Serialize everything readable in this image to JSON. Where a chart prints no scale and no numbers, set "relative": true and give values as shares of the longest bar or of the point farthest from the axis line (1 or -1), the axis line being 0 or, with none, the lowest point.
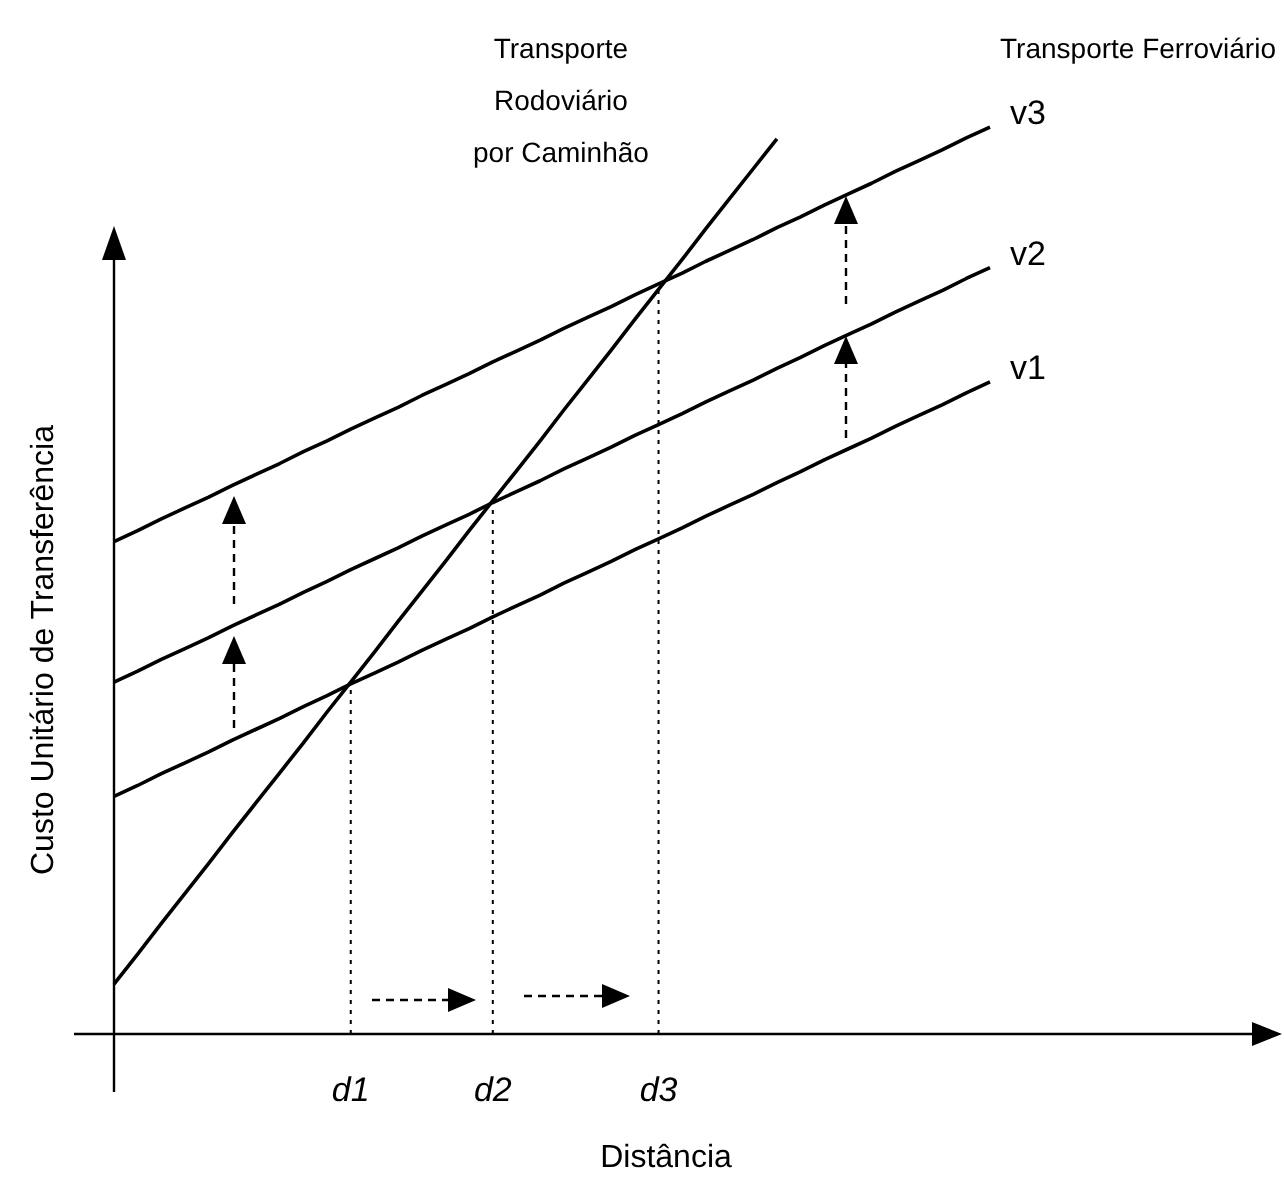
{
  "chart_data": {
    "type": "line",
    "relative": true,
    "xlabel": "Distância",
    "ylabel": "Custo Unitário de Transferência",
    "legend": false,
    "marker": "none",
    "line_style": "solid",
    "annotations": [
      "Transporte Ferroviário"
    ],
    "categories": [
      null,
      null,
      null,
      null,
      null,
      null,
      null,
      null,
      null,
      null,
      "d1",
      null,
      null,
      null,
      null,
      null,
      "d2",
      null,
      null,
      null,
      null,
      null,
      null,
      "d3",
      null,
      null,
      null,
      null,
      null,
      null,
      null,
      null,
      null,
      null,
      null,
      null,
      null,
      null
    ],
    "ref_lines": [
      {
        "axis": "x",
        "value": "d1",
        "line_style": "dotted",
        "color": "#000000"
      },
      {
        "axis": "x",
        "value": "d2",
        "line_style": "dotted",
        "color": "#000000"
      },
      {
        "axis": "x",
        "value": "d3",
        "line_style": "dotted",
        "color": "#000000"
      }
    ],
    "series": [
      {
        "name": "Transporte Rodoviário por Caminhão",
        "color": "#000000",
        "values": [
          0.055,
          0.088,
          0.122,
          0.155,
          0.188,
          0.222,
          0.255,
          0.288,
          0.321,
          0.355,
          0.388,
          0.421,
          0.455,
          0.488,
          0.521,
          0.555,
          0.588,
          0.621,
          0.654,
          0.688,
          0.721,
          0.754,
          0.788,
          0.821,
          0.854,
          0.888,
          0.921,
          0.954,
          0.987,
          null,
          null,
          null,
          null,
          null,
          null,
          null,
          null,
          null
        ]
      },
      {
        "name": "v1",
        "color": "#000000",
        "values": [
          0.262,
          0.274,
          0.287,
          0.299,
          0.311,
          0.324,
          0.336,
          0.348,
          0.361,
          0.373,
          0.386,
          0.398,
          0.41,
          0.423,
          0.435,
          0.447,
          0.46,
          0.472,
          0.484,
          0.497,
          0.509,
          0.521,
          0.534,
          0.546,
          0.558,
          0.571,
          0.583,
          0.595,
          0.608,
          0.62,
          0.633,
          0.645,
          0.657,
          0.67,
          0.682,
          0.694,
          0.707,
          0.719
        ]
      },
      {
        "name": "v2",
        "color": "#000000",
        "values": [
          0.388,
          0.4,
          0.413,
          0.425,
          0.437,
          0.45,
          0.462,
          0.474,
          0.487,
          0.499,
          0.512,
          0.524,
          0.536,
          0.549,
          0.561,
          0.573,
          0.586,
          0.598,
          0.61,
          0.623,
          0.635,
          0.647,
          0.66,
          0.672,
          0.684,
          0.697,
          0.709,
          0.721,
          0.734,
          0.746,
          0.759,
          0.771,
          0.783,
          0.796,
          0.808,
          0.82,
          0.833,
          0.845
        ]
      },
      {
        "name": "v3",
        "color": "#000000",
        "values": [
          0.543,
          0.555,
          0.568,
          0.58,
          0.592,
          0.605,
          0.617,
          0.629,
          0.642,
          0.654,
          0.667,
          0.679,
          0.691,
          0.704,
          0.716,
          0.728,
          0.741,
          0.753,
          0.765,
          0.778,
          0.79,
          0.802,
          0.815,
          0.827,
          0.839,
          0.852,
          0.864,
          0.876,
          0.889,
          0.901,
          0.914,
          0.926,
          0.938,
          0.951,
          0.963,
          0.975,
          0.988,
          1.0
        ]
      }
    ]
  }
}
